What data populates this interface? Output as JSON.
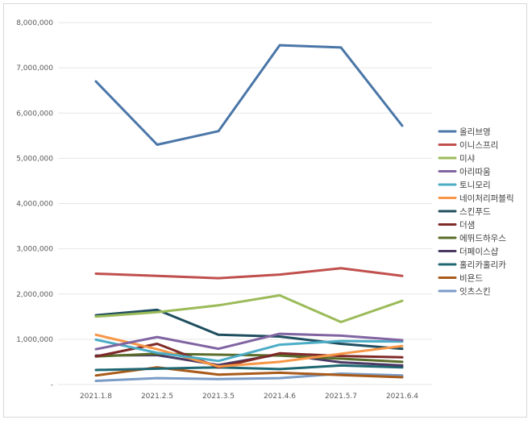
{
  "chart_data": {
    "type": "line",
    "title": "",
    "xlabel": "",
    "ylabel": "",
    "ylim": [
      0,
      8000000
    ],
    "grid": "horizontal",
    "legend_position": "right",
    "categories": [
      "2021.1.8",
      "2021.2.5",
      "2021.3.5",
      "2021.4.6",
      "2021.5.7",
      "2021.6.4"
    ],
    "y_ticks": [
      0,
      1000000,
      2000000,
      3000000,
      4000000,
      5000000,
      6000000,
      7000000,
      8000000
    ],
    "y_tick_labels": [
      "-",
      "1,000,000",
      "2,000,000",
      "3,000,000",
      "4,000,000",
      "5,000,000",
      "6,000,000",
      "7,000,000",
      "8,000,000"
    ],
    "series": [
      {
        "name": "올리브영",
        "color": "#4a76a8",
        "values": [
          6700000,
          5300000,
          5600000,
          7500000,
          7450000,
          5720000
        ]
      },
      {
        "name": "이니스프리",
        "color": "#c0504d",
        "values": [
          2450000,
          2400000,
          2350000,
          2430000,
          2570000,
          2400000
        ]
      },
      {
        "name": "미샤",
        "color": "#9bbb59",
        "values": [
          1500000,
          1600000,
          1750000,
          1970000,
          1380000,
          1850000
        ]
      },
      {
        "name": "아리따움",
        "color": "#8064a2",
        "values": [
          780000,
          1050000,
          790000,
          1120000,
          1080000,
          980000
        ]
      },
      {
        "name": "토니모리",
        "color": "#4bacc6",
        "values": [
          990000,
          700000,
          520000,
          880000,
          960000,
          950000
        ]
      },
      {
        "name": "네이처리퍼블릭",
        "color": "#f79646",
        "values": [
          1100000,
          780000,
          400000,
          500000,
          680000,
          850000
        ]
      },
      {
        "name": "스킨푸드",
        "color": "#1f4e5f",
        "values": [
          1530000,
          1650000,
          1100000,
          1060000,
          900000,
          790000
        ]
      },
      {
        "name": "더샘",
        "color": "#7f2a28",
        "values": [
          620000,
          900000,
          380000,
          690000,
          630000,
          600000
        ]
      },
      {
        "name": "에뛰드하우스",
        "color": "#5a6d2a",
        "values": [
          620000,
          680000,
          660000,
          640000,
          570000,
          500000
        ]
      },
      {
        "name": "더페이스샵",
        "color": "#4a3a63",
        "values": [
          640000,
          650000,
          430000,
          670000,
          490000,
          420000
        ]
      },
      {
        "name": "홀리카홀리카",
        "color": "#1d6772",
        "values": [
          320000,
          350000,
          380000,
          340000,
          420000,
          380000
        ]
      },
      {
        "name": "비욘드",
        "color": "#a85a1a",
        "values": [
          200000,
          380000,
          220000,
          260000,
          210000,
          160000
        ]
      },
      {
        "name": "잇츠스킨",
        "color": "#7a9cc6",
        "values": [
          80000,
          140000,
          120000,
          140000,
          240000,
          200000
        ]
      }
    ]
  }
}
